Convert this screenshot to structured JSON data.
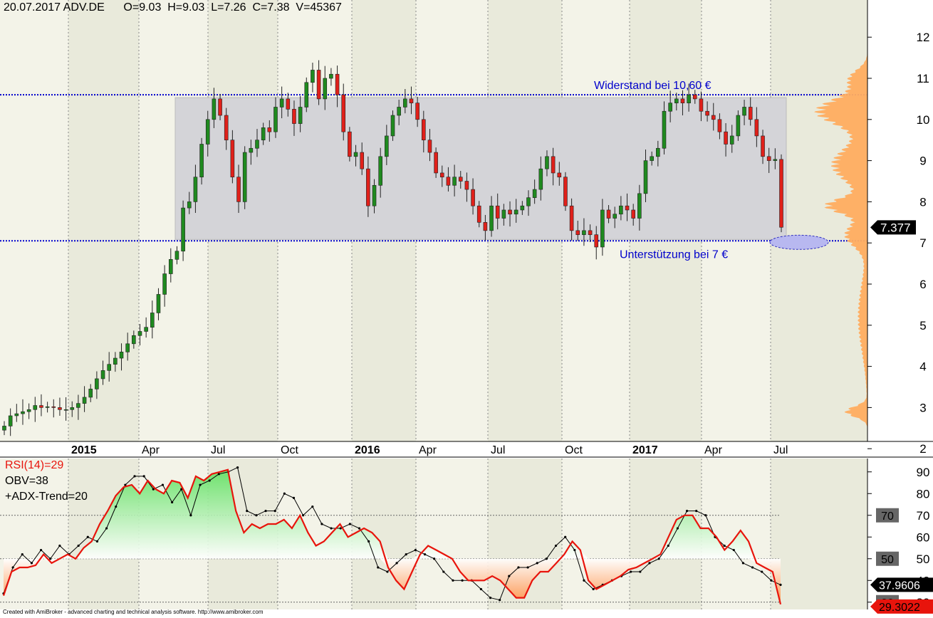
{
  "header": {
    "date": "20.07.2017",
    "symbol": "ADV.DE",
    "open_label": "O=9.03",
    "high_label": "H=9.03",
    "low_label": "L=7.26",
    "close_label": "C=7.38",
    "volume_label": "V=45367"
  },
  "footer_text": "Created with AmiBroker - advanced charting and technical analysis software. http://www.amibroker.com",
  "colors": {
    "up_candle": "#1f8a1f",
    "down_candle": "#e0201a",
    "resistance_line": "#0000cc",
    "range_box": "#d4d4d8",
    "volume_profile": "#ffad60",
    "rsi_line": "#e8140c",
    "obv_line": "#000000",
    "last_price_label_bg": "#000000"
  },
  "chart_data": [
    {
      "type": "candlestick",
      "title": "",
      "x_tick_labels": [
        {
          "label": "2015",
          "bold": true,
          "date": "2015-01"
        },
        {
          "label": "Apr",
          "bold": false,
          "date": "2015-04"
        },
        {
          "label": "Jul",
          "bold": false,
          "date": "2015-07"
        },
        {
          "label": "Oct",
          "bold": false,
          "date": "2015-10"
        },
        {
          "label": "2016",
          "bold": true,
          "date": "2016-01"
        },
        {
          "label": "Apr",
          "bold": false,
          "date": "2016-04"
        },
        {
          "label": "Jul",
          "bold": false,
          "date": "2016-07"
        },
        {
          "label": "Oct",
          "bold": false,
          "date": "2016-10"
        },
        {
          "label": "2017",
          "bold": true,
          "date": "2017-01"
        },
        {
          "label": "Apr",
          "bold": false,
          "date": "2017-04"
        },
        {
          "label": "Jul",
          "bold": false,
          "date": "2017-07"
        }
      ],
      "y_tick_labels": [
        "2",
        "3",
        "4",
        "5",
        "6",
        "7",
        "8",
        "9",
        "10",
        "11",
        "12"
      ],
      "ylim": [
        1.95,
        12.4
      ],
      "grid": "vertical dotted at month ticks",
      "resistance": {
        "value": 10.6,
        "label": "Widerstand bei 10,60 €"
      },
      "support": {
        "value": 7.05,
        "label": "Unterstützung bei 7 €"
      },
      "last_price": {
        "value": 7.377,
        "label": "7.377"
      },
      "weekly_closes": [
        2.55,
        2.8,
        2.85,
        2.9,
        2.95,
        3.05,
        3.0,
        3.02,
        3.0,
        2.95,
        2.95,
        3.0,
        3.1,
        3.25,
        3.45,
        3.7,
        3.9,
        4.05,
        4.2,
        4.35,
        4.55,
        4.75,
        4.85,
        4.95,
        5.3,
        5.75,
        6.25,
        6.6,
        6.8,
        7.85,
        8.0,
        8.6,
        9.4,
        10.0,
        10.5,
        10.1,
        9.5,
        8.6,
        8.0,
        9.2,
        9.3,
        9.5,
        9.8,
        9.7,
        10.3,
        10.5,
        10.25,
        9.9,
        10.3,
        10.9,
        11.2,
        10.5,
        11.0,
        11.1,
        10.6,
        9.7,
        9.1,
        9.2,
        8.8,
        7.9,
        8.4,
        9.1,
        9.6,
        10.1,
        10.3,
        10.5,
        10.4,
        10.0,
        9.5,
        9.2,
        8.7,
        8.6,
        8.4,
        8.6,
        8.5,
        8.3,
        7.9,
        7.5,
        7.3,
        7.9,
        7.6,
        7.8,
        7.7,
        7.8,
        7.9,
        8.1,
        8.3,
        8.8,
        9.1,
        8.7,
        8.6,
        7.9,
        7.3,
        7.2,
        7.3,
        7.2,
        6.9,
        7.8,
        7.6,
        7.7,
        7.9,
        7.8,
        7.6,
        8.2,
        9.0,
        9.1,
        9.3,
        10.2,
        10.4,
        10.5,
        10.4,
        10.6,
        10.5,
        10.2,
        10.1,
        10.0,
        9.7,
        9.4,
        9.6,
        10.1,
        10.3,
        10.0,
        9.6,
        9.1,
        9.0,
        9.03,
        7.38
      ],
      "volume_profile": "horizontal histogram on right edge, peaks near 10.2 and 7.5"
    },
    {
      "type": "line",
      "title": "",
      "series": [
        {
          "name": "RSI(14)=29",
          "legend": "RSI(14)=29",
          "last_value_label": "29.3022"
        },
        {
          "name": "OBV=38",
          "legend": "OBV=38",
          "last_value_label": "37.9606"
        },
        {
          "name": "+ADX-Trend=20",
          "legend": "+ADX-Trend=20"
        }
      ],
      "y_tick_labels": [
        "30",
        "40",
        "50",
        "60",
        "70",
        "80",
        "90"
      ],
      "ylim": [
        25,
        93
      ],
      "threshold_labels": [
        "70",
        "50",
        "30"
      ],
      "rsi_values": [
        33,
        44,
        46,
        46,
        47,
        52,
        48,
        50,
        52,
        50,
        55,
        58,
        66,
        72,
        79,
        83,
        84,
        80,
        86,
        82,
        80,
        86,
        85,
        78,
        88,
        86,
        89,
        90,
        91,
        72,
        62,
        66,
        64,
        66,
        66,
        68,
        64,
        70,
        62,
        56,
        58,
        62,
        66,
        60,
        62,
        64,
        62,
        58,
        46,
        40,
        36,
        44,
        52,
        56,
        54,
        52,
        50,
        44,
        40,
        40,
        40,
        42,
        40,
        36,
        32,
        32,
        40,
        44,
        44,
        48,
        52,
        58,
        54,
        40,
        36,
        38,
        40,
        42,
        45,
        46,
        48,
        50,
        52,
        60,
        68,
        70,
        70,
        64,
        64,
        60,
        54,
        58,
        63,
        58,
        48,
        46,
        44,
        29
      ],
      "obv_values": [
        34,
        46,
        52,
        48,
        54,
        50,
        56,
        52,
        56,
        60,
        58,
        64,
        74,
        84,
        88,
        88,
        82,
        84,
        76,
        82,
        70,
        84,
        86,
        89,
        90,
        92,
        72,
        70,
        72,
        72,
        80,
        78,
        70,
        74,
        66,
        64,
        64,
        66,
        64,
        58,
        46,
        44,
        48,
        52,
        54,
        52,
        50,
        44,
        40,
        40,
        40,
        36,
        32,
        31,
        42,
        46,
        46,
        48,
        50,
        56,
        60,
        54,
        40,
        36,
        38,
        40,
        42,
        44,
        44,
        48,
        50,
        56,
        64,
        72,
        72,
        70,
        60,
        56,
        54,
        48,
        46,
        44,
        40,
        38
      ]
    }
  ]
}
